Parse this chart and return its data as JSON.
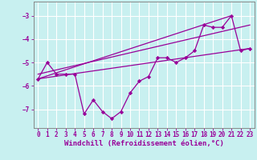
{
  "xlabel": "Windchill (Refroidissement éolien,°C)",
  "background_color": "#c8f0f0",
  "line_color": "#990099",
  "grid_color": "#ffffff",
  "xlim": [
    -0.5,
    23.5
  ],
  "ylim": [
    -7.8,
    -2.4
  ],
  "yticks": [
    -7,
    -6,
    -5,
    -4,
    -3
  ],
  "xticks": [
    0,
    1,
    2,
    3,
    4,
    5,
    6,
    7,
    8,
    9,
    10,
    11,
    12,
    13,
    14,
    15,
    16,
    17,
    18,
    19,
    20,
    21,
    22,
    23
  ],
  "series1_x": [
    0,
    1,
    2,
    3,
    4,
    5,
    6,
    7,
    8,
    9,
    10,
    11,
    12,
    13,
    14,
    15,
    16,
    17,
    18,
    19,
    20,
    21,
    22,
    23
  ],
  "series1_y": [
    -5.7,
    -5.0,
    -5.5,
    -5.5,
    -5.5,
    -7.2,
    -6.6,
    -7.1,
    -7.4,
    -7.1,
    -6.3,
    -5.8,
    -5.6,
    -4.8,
    -4.8,
    -5.0,
    -4.8,
    -4.5,
    -3.4,
    -3.5,
    -3.5,
    -3.0,
    -4.5,
    -4.4
  ],
  "series2_x": [
    0,
    23
  ],
  "series2_y": [
    -5.7,
    -4.4
  ],
  "series3_x": [
    0,
    21
  ],
  "series3_y": [
    -5.7,
    -3.0
  ],
  "series4_x": [
    0,
    23
  ],
  "series4_y": [
    -5.5,
    -3.4
  ],
  "xlabel_fontsize": 6.5,
  "tick_fontsize": 5.5,
  "marker_size": 2.2,
  "line_width": 0.9
}
